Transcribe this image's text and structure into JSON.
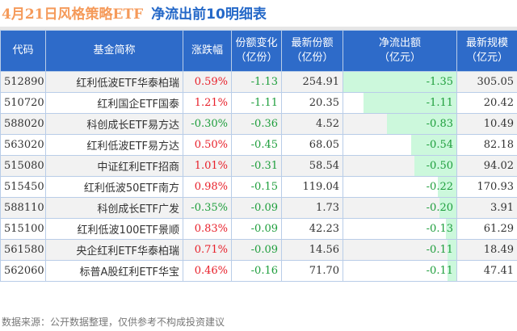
{
  "title": {
    "part1": "4月21日风格策略ETF",
    "part2": "净流出前10明细表"
  },
  "colors": {
    "header_bg": "#2e6bc9",
    "title_orange": "#f59a5a",
    "title_blue": "#2468c8",
    "positive": "#e8202a",
    "negative": "#1e9e3c",
    "flow_bar": "#ccf8dc"
  },
  "table": {
    "headers": {
      "code": "代码",
      "name": "基金简称",
      "change": "涨跌幅",
      "share_change_l1": "份额变化",
      "share_change_l2": "（亿份）",
      "latest_share_l1": "最新份额",
      "latest_share_l2": "（亿份）",
      "net_outflow_l1": "净流出额",
      "net_outflow_l2": "（亿元）",
      "scale_l1": "最新规模",
      "scale_l2": "（亿元）"
    },
    "rows": [
      {
        "code": "512890",
        "name": "红利低波ETF华泰柏瑞",
        "change": "0.59%",
        "share_change": "-1.13",
        "latest_share": "254.91",
        "net_outflow": "-1.35",
        "scale": "305.05"
      },
      {
        "code": "510720",
        "name": "红利国企ETF国泰",
        "change": "1.21%",
        "share_change": "-1.11",
        "latest_share": "20.35",
        "net_outflow": "-1.11",
        "scale": "20.42"
      },
      {
        "code": "588020",
        "name": "科创成长ETF易方达",
        "change": "-0.30%",
        "share_change": "-0.36",
        "latest_share": "4.52",
        "net_outflow": "-0.83",
        "scale": "10.49"
      },
      {
        "code": "563020",
        "name": "红利低波ETF易方达",
        "change": "0.50%",
        "share_change": "-0.45",
        "latest_share": "68.05",
        "net_outflow": "-0.54",
        "scale": "82.18"
      },
      {
        "code": "515080",
        "name": "中证红利ETF招商",
        "change": "1.01%",
        "share_change": "-0.31",
        "latest_share": "58.54",
        "net_outflow": "-0.50",
        "scale": "94.02"
      },
      {
        "code": "515450",
        "name": "红利低波50ETF南方",
        "change": "0.98%",
        "share_change": "-0.15",
        "latest_share": "119.04",
        "net_outflow": "-0.22",
        "scale": "170.93"
      },
      {
        "code": "588110",
        "name": "科创成长ETF广发",
        "change": "-0.35%",
        "share_change": "-0.09",
        "latest_share": "1.73",
        "net_outflow": "-0.20",
        "scale": "3.91"
      },
      {
        "code": "515100",
        "name": "红利低波100ETF景顺",
        "change": "0.83%",
        "share_change": "-0.09",
        "latest_share": "42.23",
        "net_outflow": "-0.13",
        "scale": "61.29"
      },
      {
        "code": "561580",
        "name": "央企红利ETF华泰柏瑞",
        "change": "0.71%",
        "share_change": "-0.09",
        "latest_share": "14.56",
        "net_outflow": "-0.11",
        "scale": "18.49"
      },
      {
        "code": "562060",
        "name": "标普A股红利ETF华宝",
        "change": "0.46%",
        "share_change": "-0.16",
        "latest_share": "71.70",
        "net_outflow": "-0.11",
        "scale": "47.41"
      }
    ]
  },
  "footer": "数据来源：公开数据整理，仅供参考不构成投资建议"
}
